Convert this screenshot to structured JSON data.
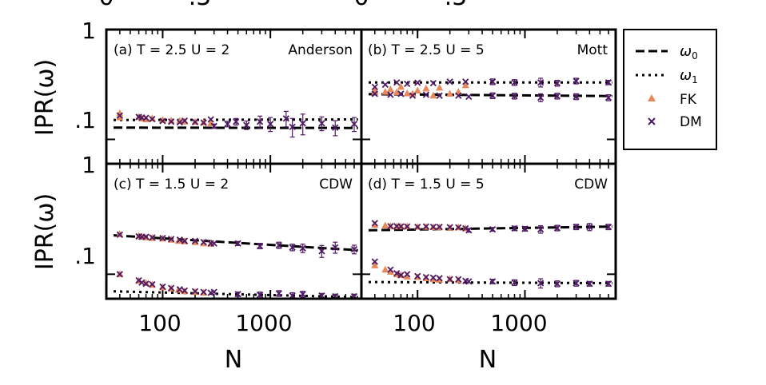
{
  "top_clip": {
    "left": [
      "0",
      ".5"
    ],
    "right": [
      "0",
      ".5"
    ]
  },
  "axis": {
    "ylabel": "IPR(ω)",
    "xlabel": "N",
    "ytick_labels": [
      "1",
      ".1"
    ],
    "xtick_labels": [
      "100",
      "1000"
    ]
  },
  "legend": {
    "omega0": {
      "base": "ω",
      "sub": "0"
    },
    "omega1": {
      "base": "ω",
      "sub": "1"
    },
    "fk": "FK",
    "dm": "DM"
  },
  "colors": {
    "fk": "#e8875a",
    "dm": "#4e1a63",
    "line": "#000000"
  },
  "chart_data": {
    "type": "scatter",
    "x_scale": "log",
    "y_scale": "log",
    "xlim": [
      30,
      7000
    ],
    "ylim": [
      0.06,
      1.0
    ],
    "panels": [
      {
        "id": "a",
        "title": "(a) T = 2.5 U = 2",
        "regime": "Anderson",
        "lines": {
          "omega0": {
            "style": "dashed",
            "x": [
              35,
              6500
            ],
            "y": [
              0.128,
              0.127
            ]
          },
          "omega1": {
            "style": "dotted",
            "x": [
              35,
              6500
            ],
            "y": [
              0.15,
              0.152
            ]
          }
        },
        "fk": [
          [
            40,
            0.172
          ],
          [
            40,
            0.158
          ],
          [
            60,
            0.16
          ],
          [
            64,
            0.155
          ],
          [
            70,
            0.152
          ],
          [
            80,
            0.155
          ],
          [
            100,
            0.15
          ],
          [
            120,
            0.148
          ],
          [
            144,
            0.147
          ],
          [
            160,
            0.145
          ],
          [
            200,
            0.144
          ],
          [
            240,
            0.142
          ],
          [
            280,
            0.14
          ]
        ],
        "dm": [
          {
            "x": 40,
            "y": 0.165,
            "e": 0
          },
          {
            "x": 60,
            "y": 0.16,
            "e": 0
          },
          {
            "x": 64,
            "y": 0.158,
            "e": 0
          },
          {
            "x": 70,
            "y": 0.157,
            "e": 0
          },
          {
            "x": 80,
            "y": 0.153,
            "e": 0
          },
          {
            "x": 100,
            "y": 0.147,
            "e": 0
          },
          {
            "x": 120,
            "y": 0.145,
            "e": 0
          },
          {
            "x": 144,
            "y": 0.143,
            "e": 0
          },
          {
            "x": 160,
            "y": 0.148,
            "e": 0
          },
          {
            "x": 200,
            "y": 0.144,
            "e": 0
          },
          {
            "x": 240,
            "y": 0.142,
            "e": 0
          },
          {
            "x": 280,
            "y": 0.152,
            "e": 0
          },
          {
            "x": 300,
            "y": 0.132,
            "e": 0.006
          },
          {
            "x": 400,
            "y": 0.138,
            "e": 0.008
          },
          {
            "x": 480,
            "y": 0.145,
            "e": 0.01
          },
          {
            "x": 600,
            "y": 0.135,
            "e": 0.012
          },
          {
            "x": 800,
            "y": 0.145,
            "e": 0.018
          },
          {
            "x": 1000,
            "y": 0.138,
            "e": 0.02
          },
          {
            "x": 1400,
            "y": 0.155,
            "e": 0.025
          },
          {
            "x": 1600,
            "y": 0.13,
            "e": 0.025
          },
          {
            "x": 2000,
            "y": 0.14,
            "e": 0.03
          },
          {
            "x": 3000,
            "y": 0.14,
            "e": 0.02
          },
          {
            "x": 4000,
            "y": 0.128,
            "e": 0.02
          },
          {
            "x": 6000,
            "y": 0.138,
            "e": 0.02
          }
        ]
      },
      {
        "id": "b",
        "title": "(b) T = 2.5 U = 5",
        "regime": "Mott",
        "lines": {
          "omega0": {
            "style": "dashed",
            "x": [
              35,
              6500
            ],
            "y": [
              0.258,
              0.248
            ]
          },
          "omega1": {
            "style": "dotted",
            "x": [
              35,
              6500
            ],
            "y": [
              0.33,
              0.33
            ]
          }
        },
        "fk": [
          [
            40,
            0.27
          ],
          [
            40,
            0.28
          ],
          [
            50,
            0.27
          ],
          [
            56,
            0.285
          ],
          [
            64,
            0.268
          ],
          [
            70,
            0.3
          ],
          [
            80,
            0.262
          ],
          [
            90,
            0.26
          ],
          [
            100,
            0.278
          ],
          [
            120,
            0.29
          ],
          [
            140,
            0.25
          ],
          [
            160,
            0.295
          ],
          [
            200,
            0.26
          ],
          [
            240,
            0.27
          ],
          [
            280,
            0.31
          ]
        ],
        "dm": [
          {
            "x": 40,
            "y": 0.3,
            "e": 0
          },
          {
            "x": 40,
            "y": 0.26,
            "e": 0
          },
          {
            "x": 50,
            "y": 0.315,
            "e": 0
          },
          {
            "x": 56,
            "y": 0.255,
            "e": 0
          },
          {
            "x": 64,
            "y": 0.33,
            "e": 0
          },
          {
            "x": 70,
            "y": 0.26,
            "e": 0
          },
          {
            "x": 80,
            "y": 0.32,
            "e": 0
          },
          {
            "x": 90,
            "y": 0.25,
            "e": 0
          },
          {
            "x": 100,
            "y": 0.328,
            "e": 0
          },
          {
            "x": 120,
            "y": 0.255,
            "e": 0
          },
          {
            "x": 140,
            "y": 0.325,
            "e": 0
          },
          {
            "x": 160,
            "y": 0.25,
            "e": 0
          },
          {
            "x": 200,
            "y": 0.335,
            "e": 0
          },
          {
            "x": 240,
            "y": 0.25,
            "e": 0
          },
          {
            "x": 280,
            "y": 0.335,
            "e": 0
          },
          {
            "x": 300,
            "y": 0.245,
            "e": 0
          },
          {
            "x": 500,
            "y": 0.335,
            "e": 0.02
          },
          {
            "x": 500,
            "y": 0.25,
            "e": 0.015
          },
          {
            "x": 800,
            "y": 0.33,
            "e": 0.02
          },
          {
            "x": 800,
            "y": 0.248,
            "e": 0.015
          },
          {
            "x": 1400,
            "y": 0.33,
            "e": 0.03
          },
          {
            "x": 1400,
            "y": 0.24,
            "e": 0.02
          },
          {
            "x": 2000,
            "y": 0.325,
            "e": 0.02
          },
          {
            "x": 2000,
            "y": 0.248,
            "e": 0.015
          },
          {
            "x": 3000,
            "y": 0.34,
            "e": 0.02
          },
          {
            "x": 3000,
            "y": 0.245,
            "e": 0.015
          },
          {
            "x": 6000,
            "y": 0.33,
            "e": 0.015
          },
          {
            "x": 6000,
            "y": 0.24,
            "e": 0.015
          }
        ]
      },
      {
        "id": "c",
        "title": "(c) T = 1.5 U = 2",
        "regime": "CDW",
        "lines": {
          "omega0": {
            "style": "dashed",
            "x": [
              35,
              6500
            ],
            "y": [
              0.225,
              0.165
            ]
          },
          "omega1": {
            "style": "dotted",
            "x": [
              35,
              6500
            ],
            "y": [
              0.07,
              0.062
            ]
          }
        },
        "fk": [
          [
            40,
            0.23
          ],
          [
            60,
            0.222
          ],
          [
            64,
            0.218
          ],
          [
            70,
            0.215
          ],
          [
            80,
            0.212
          ],
          [
            100,
            0.21
          ],
          [
            120,
            0.205
          ],
          [
            140,
            0.2
          ],
          [
            160,
            0.198
          ],
          [
            200,
            0.195
          ],
          [
            240,
            0.19
          ],
          [
            280,
            0.188
          ],
          [
            40,
            0.1
          ],
          [
            60,
            0.087
          ],
          [
            70,
            0.083
          ],
          [
            80,
            0.08
          ],
          [
            100,
            0.076
          ],
          [
            120,
            0.074
          ],
          [
            140,
            0.072
          ],
          [
            160,
            0.07
          ],
          [
            200,
            0.069
          ],
          [
            240,
            0.068
          ]
        ],
        "dm": [
          {
            "x": 40,
            "y": 0.228,
            "e": 0
          },
          {
            "x": 60,
            "y": 0.22,
            "e": 0
          },
          {
            "x": 64,
            "y": 0.218,
            "e": 0
          },
          {
            "x": 70,
            "y": 0.218,
            "e": 0
          },
          {
            "x": 80,
            "y": 0.215,
            "e": 0
          },
          {
            "x": 100,
            "y": 0.212,
            "e": 0
          },
          {
            "x": 120,
            "y": 0.208,
            "e": 0
          },
          {
            "x": 144,
            "y": 0.205,
            "e": 0
          },
          {
            "x": 160,
            "y": 0.2,
            "e": 0
          },
          {
            "x": 200,
            "y": 0.2,
            "e": 0
          },
          {
            "x": 240,
            "y": 0.195,
            "e": 0
          },
          {
            "x": 280,
            "y": 0.19,
            "e": 0
          },
          {
            "x": 300,
            "y": 0.19,
            "e": 0
          },
          {
            "x": 500,
            "y": 0.19,
            "e": 0.008
          },
          {
            "x": 800,
            "y": 0.18,
            "e": 0.01
          },
          {
            "x": 1200,
            "y": 0.183,
            "e": 0.012
          },
          {
            "x": 1600,
            "y": 0.175,
            "e": 0.012
          },
          {
            "x": 2000,
            "y": 0.172,
            "e": 0.015
          },
          {
            "x": 3000,
            "y": 0.162,
            "e": 0.02
          },
          {
            "x": 4000,
            "y": 0.175,
            "e": 0.02
          },
          {
            "x": 6000,
            "y": 0.168,
            "e": 0.015
          },
          {
            "x": 40,
            "y": 0.1,
            "e": 0
          },
          {
            "x": 60,
            "y": 0.088,
            "e": 0
          },
          {
            "x": 64,
            "y": 0.084,
            "e": 0
          },
          {
            "x": 70,
            "y": 0.082,
            "e": 0
          },
          {
            "x": 80,
            "y": 0.081,
            "e": 0
          },
          {
            "x": 100,
            "y": 0.077,
            "e": 0
          },
          {
            "x": 120,
            "y": 0.075,
            "e": 0
          },
          {
            "x": 144,
            "y": 0.073,
            "e": 0
          },
          {
            "x": 160,
            "y": 0.071,
            "e": 0
          },
          {
            "x": 200,
            "y": 0.07,
            "e": 0
          },
          {
            "x": 240,
            "y": 0.069,
            "e": 0
          },
          {
            "x": 280,
            "y": 0.068,
            "e": 0
          },
          {
            "x": 300,
            "y": 0.069,
            "e": 0
          },
          {
            "x": 500,
            "y": 0.066,
            "e": 0.003
          },
          {
            "x": 800,
            "y": 0.065,
            "e": 0.004
          },
          {
            "x": 1200,
            "y": 0.067,
            "e": 0.004
          },
          {
            "x": 1600,
            "y": 0.064,
            "e": 0.004
          },
          {
            "x": 2000,
            "y": 0.066,
            "e": 0.004
          },
          {
            "x": 3000,
            "y": 0.064,
            "e": 0.003
          },
          {
            "x": 4000,
            "y": 0.063,
            "e": 0.003
          },
          {
            "x": 6000,
            "y": 0.063,
            "e": 0.003
          }
        ]
      },
      {
        "id": "d",
        "title": "(d) T = 1.5 U = 5",
        "regime": "CDW",
        "lines": {
          "omega0": {
            "style": "dashed",
            "x": [
              35,
              6500
            ],
            "y": [
              0.25,
              0.27
            ]
          },
          "omega1": {
            "style": "dotted",
            "x": [
              35,
              6500
            ],
            "y": [
              0.085,
              0.083
            ]
          }
        },
        "fk": [
          [
            40,
            0.28
          ],
          [
            50,
            0.275
          ],
          [
            56,
            0.272
          ],
          [
            64,
            0.27
          ],
          [
            70,
            0.27
          ],
          [
            80,
            0.27
          ],
          [
            100,
            0.268
          ],
          [
            120,
            0.268
          ],
          [
            140,
            0.266
          ],
          [
            160,
            0.265
          ],
          [
            200,
            0.262
          ],
          [
            240,
            0.265
          ],
          [
            280,
            0.26
          ],
          [
            40,
            0.12
          ],
          [
            50,
            0.11
          ],
          [
            56,
            0.105
          ],
          [
            64,
            0.1
          ],
          [
            70,
            0.098
          ],
          [
            80,
            0.095
          ],
          [
            100,
            0.094
          ],
          [
            120,
            0.092
          ],
          [
            140,
            0.09
          ],
          [
            160,
            0.089
          ],
          [
            200,
            0.09
          ],
          [
            240,
            0.088
          ]
        ],
        "dm": [
          {
            "x": 40,
            "y": 0.29,
            "e": 0
          },
          {
            "x": 56,
            "y": 0.272,
            "e": 0
          },
          {
            "x": 64,
            "y": 0.272,
            "e": 0
          },
          {
            "x": 70,
            "y": 0.27,
            "e": 0
          },
          {
            "x": 80,
            "y": 0.27,
            "e": 0
          },
          {
            "x": 100,
            "y": 0.268,
            "e": 0
          },
          {
            "x": 120,
            "y": 0.27,
            "e": 0
          },
          {
            "x": 140,
            "y": 0.268,
            "e": 0
          },
          {
            "x": 160,
            "y": 0.268,
            "e": 0
          },
          {
            "x": 200,
            "y": 0.266,
            "e": 0
          },
          {
            "x": 240,
            "y": 0.265,
            "e": 0
          },
          {
            "x": 280,
            "y": 0.26,
            "e": 0
          },
          {
            "x": 300,
            "y": 0.25,
            "e": 0.01
          },
          {
            "x": 500,
            "y": 0.255,
            "e": 0.01
          },
          {
            "x": 800,
            "y": 0.26,
            "e": 0.012
          },
          {
            "x": 1000,
            "y": 0.258,
            "e": 0.012
          },
          {
            "x": 1400,
            "y": 0.255,
            "e": 0.02
          },
          {
            "x": 2000,
            "y": 0.262,
            "e": 0.015
          },
          {
            "x": 3000,
            "y": 0.268,
            "e": 0.015
          },
          {
            "x": 4000,
            "y": 0.268,
            "e": 0.02
          },
          {
            "x": 6000,
            "y": 0.268,
            "e": 0.015
          },
          {
            "x": 40,
            "y": 0.13,
            "e": 0
          },
          {
            "x": 56,
            "y": 0.11,
            "e": 0
          },
          {
            "x": 64,
            "y": 0.102,
            "e": 0
          },
          {
            "x": 70,
            "y": 0.098,
            "e": 0
          },
          {
            "x": 80,
            "y": 0.1,
            "e": 0
          },
          {
            "x": 100,
            "y": 0.096,
            "e": 0
          },
          {
            "x": 120,
            "y": 0.094,
            "e": 0
          },
          {
            "x": 140,
            "y": 0.093,
            "e": 0
          },
          {
            "x": 160,
            "y": 0.092,
            "e": 0
          },
          {
            "x": 200,
            "y": 0.09,
            "e": 0
          },
          {
            "x": 240,
            "y": 0.09,
            "e": 0
          },
          {
            "x": 280,
            "y": 0.087,
            "e": 0
          },
          {
            "x": 300,
            "y": 0.086,
            "e": 0
          },
          {
            "x": 500,
            "y": 0.086,
            "e": 0.004
          },
          {
            "x": 800,
            "y": 0.084,
            "e": 0.005
          },
          {
            "x": 1400,
            "y": 0.083,
            "e": 0.008
          },
          {
            "x": 2000,
            "y": 0.082,
            "e": 0.005
          },
          {
            "x": 3000,
            "y": 0.083,
            "e": 0.005
          },
          {
            "x": 4000,
            "y": 0.082,
            "e": 0.004
          },
          {
            "x": 6000,
            "y": 0.082,
            "e": 0.004
          }
        ]
      }
    ]
  }
}
